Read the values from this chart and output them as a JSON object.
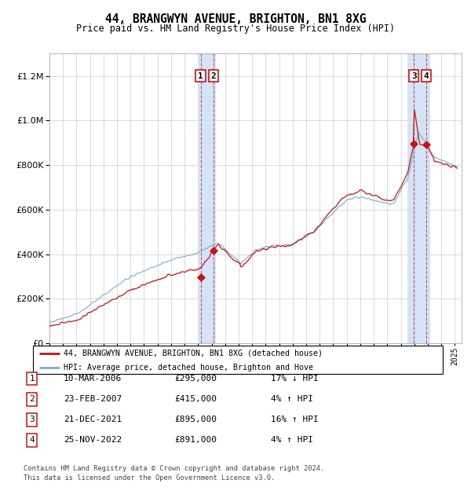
{
  "title": "44, BRANGWYN AVENUE, BRIGHTON, BN1 8XG",
  "subtitle": "Price paid vs. HM Land Registry's House Price Index (HPI)",
  "ylim": [
    0,
    1300000
  ],
  "xlim_start": 1995.0,
  "xlim_end": 2025.5,
  "hpi_color": "#7aaadd",
  "price_color": "#cc1111",
  "background_color": "#ffffff",
  "grid_color": "#cccccc",
  "sale_points": [
    {
      "label": 1,
      "date_num": 2006.19,
      "price": 295000
    },
    {
      "label": 2,
      "date_num": 2007.14,
      "price": 415000
    },
    {
      "label": 3,
      "date_num": 2021.97,
      "price": 895000
    },
    {
      "label": 4,
      "date_num": 2022.9,
      "price": 891000
    }
  ],
  "transaction_table": [
    [
      "1",
      "10-MAR-2006",
      "£295,000",
      "17% ↓ HPI"
    ],
    [
      "2",
      "23-FEB-2007",
      "£415,000",
      "4% ↑ HPI"
    ],
    [
      "3",
      "21-DEC-2021",
      "£895,000",
      "16% ↑ HPI"
    ],
    [
      "4",
      "25-NOV-2022",
      "£891,000",
      "4% ↑ HPI"
    ]
  ],
  "legend1": "44, BRANGWYN AVENUE, BRIGHTON, BN1 8XG (detached house)",
  "legend2": "HPI: Average price, detached house, Brighton and Hove",
  "footnote1": "Contains HM Land Registry data © Crown copyright and database right 2024.",
  "footnote2": "This data is licensed under the Open Government Licence v3.0.",
  "highlight_regions": [
    {
      "x_start": 2006.0,
      "x_end": 2007.3
    },
    {
      "x_start": 2021.5,
      "x_end": 2023.15
    }
  ]
}
